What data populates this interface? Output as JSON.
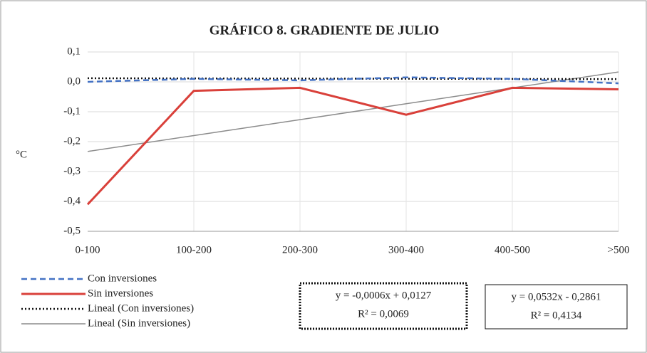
{
  "chart_data": {
    "type": "line",
    "title": "GRÁFICO 8. GRADIENTE DE JULIO",
    "y_label": "°C",
    "categories": [
      "0-100",
      "100-200",
      "200-300",
      "300-400",
      "400-500",
      ">500"
    ],
    "series": [
      {
        "name": "Con inversiones",
        "color": "#4472c4",
        "dash": "dashed",
        "values": [
          0.0,
          0.01,
          0.005,
          0.015,
          0.01,
          -0.005
        ]
      },
      {
        "name": "Sin inversiones",
        "color": "#d9403a",
        "dash": "solid",
        "values": [
          -0.41,
          -0.03,
          -0.02,
          -0.11,
          -0.02,
          -0.025
        ]
      },
      {
        "name": "Lineal (Con inversiones)",
        "color": "#111111",
        "dash": "dotted",
        "values": [
          0.0121,
          0.0115,
          0.0109,
          0.0103,
          0.0097,
          0.0091
        ]
      },
      {
        "name": "Lineal (Sin inversiones)",
        "color": "#8c8c8c",
        "dash": "solid",
        "values": [
          -0.2329,
          -0.1797,
          -0.1265,
          -0.0733,
          -0.0201,
          0.0331
        ]
      }
    ],
    "ylim": [
      -0.5,
      0.1
    ],
    "yticks": [
      {
        "value": 0.1,
        "label": "0,1"
      },
      {
        "value": 0.0,
        "label": "0,0"
      },
      {
        "value": -0.1,
        "label": "-0,1"
      },
      {
        "value": -0.2,
        "label": "-0,2"
      },
      {
        "value": -0.3,
        "label": "-0,3"
      },
      {
        "value": -0.4,
        "label": "-0,4"
      },
      {
        "value": -0.5,
        "label": "-0,5"
      }
    ],
    "grid": true,
    "legend": "bottom-left",
    "annotations": [
      {
        "lines": [
          "y = -0,0006x + 0,0127",
          "R² = 0,0069"
        ],
        "border": "dotted"
      },
      {
        "lines": [
          "y = 0,0532x - 0,2861",
          "R² = 0,4134"
        ],
        "border": "solid"
      }
    ]
  }
}
